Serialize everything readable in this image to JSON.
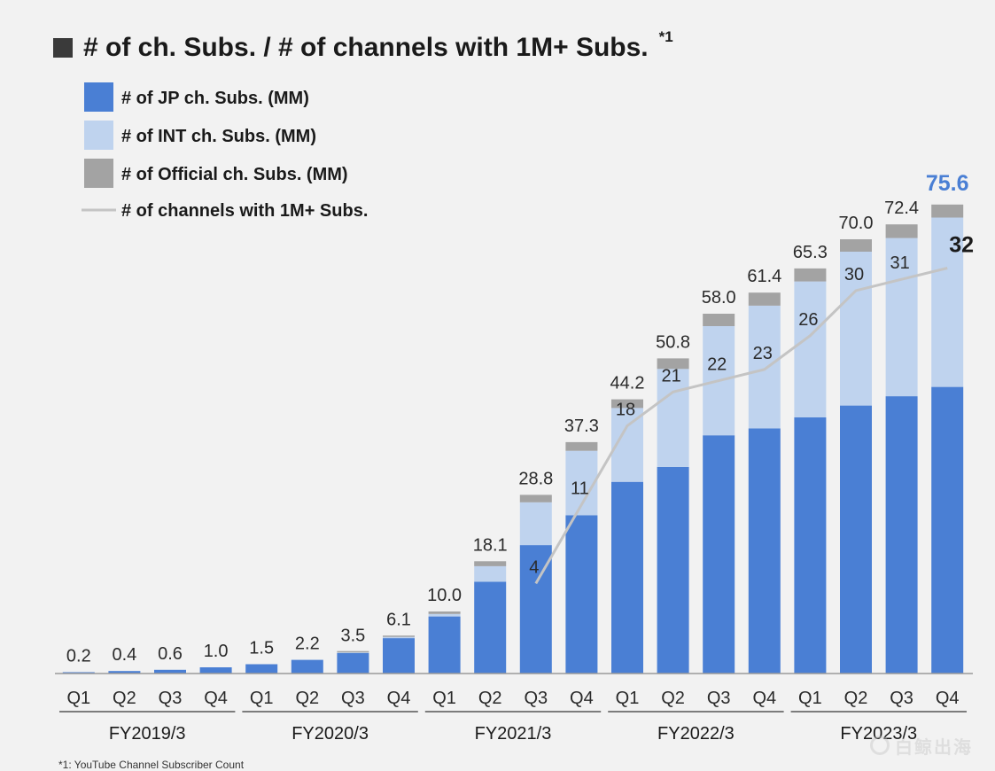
{
  "title": "# of ch. Subs. / # of channels with 1M+ Subs.",
  "title_note": "*1",
  "footnote": "*1: YouTube Channel Subscriber Count",
  "watermark": "白鲸出海",
  "colors": {
    "jp": "#4a7fd4",
    "intl": "#bfd3ee",
    "official": "#a3a3a3",
    "line": "#c4c4c4",
    "highlight": "#4a7fd4"
  },
  "chart_data": {
    "type": "bar",
    "stacked": true,
    "legend": [
      {
        "key": "jp",
        "label": "# of JP ch. Subs. (MM)",
        "marker": "square"
      },
      {
        "key": "intl",
        "label": "# of INT ch. Subs. (MM)",
        "marker": "square"
      },
      {
        "key": "official",
        "label": "# of Official ch. Subs. (MM)",
        "marker": "square"
      },
      {
        "key": "line",
        "label": "# of channels with 1M+ Subs.",
        "marker": "line"
      }
    ],
    "categories": [
      "Q1",
      "Q2",
      "Q3",
      "Q4",
      "Q1",
      "Q2",
      "Q3",
      "Q4",
      "Q1",
      "Q2",
      "Q3",
      "Q4",
      "Q1",
      "Q2",
      "Q3",
      "Q4",
      "Q1",
      "Q2",
      "Q3",
      "Q4"
    ],
    "fiscal_years": [
      {
        "label": "FY2019/3",
        "start": 0,
        "end": 3
      },
      {
        "label": "FY2020/3",
        "start": 4,
        "end": 7
      },
      {
        "label": "FY2021/3",
        "start": 8,
        "end": 11
      },
      {
        "label": "FY2022/3",
        "start": 12,
        "end": 15
      },
      {
        "label": "FY2023/3",
        "start": 16,
        "end": 19
      }
    ],
    "totals": [
      0.2,
      0.4,
      0.6,
      1.0,
      1.5,
      2.2,
      3.5,
      6.1,
      10.0,
      18.1,
      28.8,
      37.3,
      44.2,
      50.8,
      58.0,
      61.4,
      65.3,
      70.0,
      72.4,
      75.6
    ],
    "total_labels": [
      "0.2",
      "0.4",
      "0.6",
      "1.0",
      "1.5",
      "2.2",
      "3.5",
      "6.1",
      "10.0",
      "18.1",
      "28.8",
      "37.3",
      "44.2",
      "50.8",
      "58.0",
      "61.4",
      "65.3",
      "70.0",
      "72.4",
      "75.6"
    ],
    "series": [
      {
        "name": "# of JP ch. Subs. (MM)",
        "key": "jp",
        "values": [
          0.2,
          0.4,
          0.6,
          1.0,
          1.5,
          2.2,
          3.3,
          5.7,
          9.2,
          14.8,
          20.7,
          25.5,
          30.9,
          33.3,
          38.4,
          39.5,
          41.3,
          43.2,
          44.7,
          46.2
        ]
      },
      {
        "name": "# of INT ch. Subs. (MM)",
        "key": "intl",
        "values": [
          0,
          0,
          0,
          0,
          0,
          0,
          0.1,
          0.2,
          0.4,
          2.5,
          6.9,
          10.4,
          11.9,
          15.8,
          17.6,
          19.8,
          21.9,
          24.8,
          25.5,
          27.3
        ]
      },
      {
        "name": "# of Official ch. Subs. (MM)",
        "key": "official",
        "values": [
          0,
          0,
          0,
          0,
          0,
          0,
          0.1,
          0.2,
          0.4,
          0.8,
          1.2,
          1.4,
          1.4,
          1.7,
          2.0,
          2.1,
          2.1,
          2.0,
          2.2,
          2.1
        ]
      }
    ],
    "line_series": {
      "name": "# of channels with 1M+ Subs.",
      "points": [
        {
          "index": 10,
          "value": 4,
          "label": "4"
        },
        {
          "index": 11,
          "value": 11,
          "label": "11"
        },
        {
          "index": 12,
          "value": 18,
          "label": "18"
        },
        {
          "index": 13,
          "value": 21,
          "label": "21"
        },
        {
          "index": 14,
          "value": 22,
          "label": "22"
        },
        {
          "index": 15,
          "value": 23,
          "label": "23"
        },
        {
          "index": 16,
          "value": 26,
          "label": "26"
        },
        {
          "index": 17,
          "value": 30,
          "label": "30"
        },
        {
          "index": 18,
          "value": 31,
          "label": "31"
        },
        {
          "index": 19,
          "value": 32,
          "label": "32"
        }
      ],
      "ylim": [
        -4,
        44
      ]
    },
    "ylim": [
      0,
      80
    ],
    "xlabel": "",
    "ylabel": "",
    "grid": false,
    "legend_position": "top-left"
  }
}
